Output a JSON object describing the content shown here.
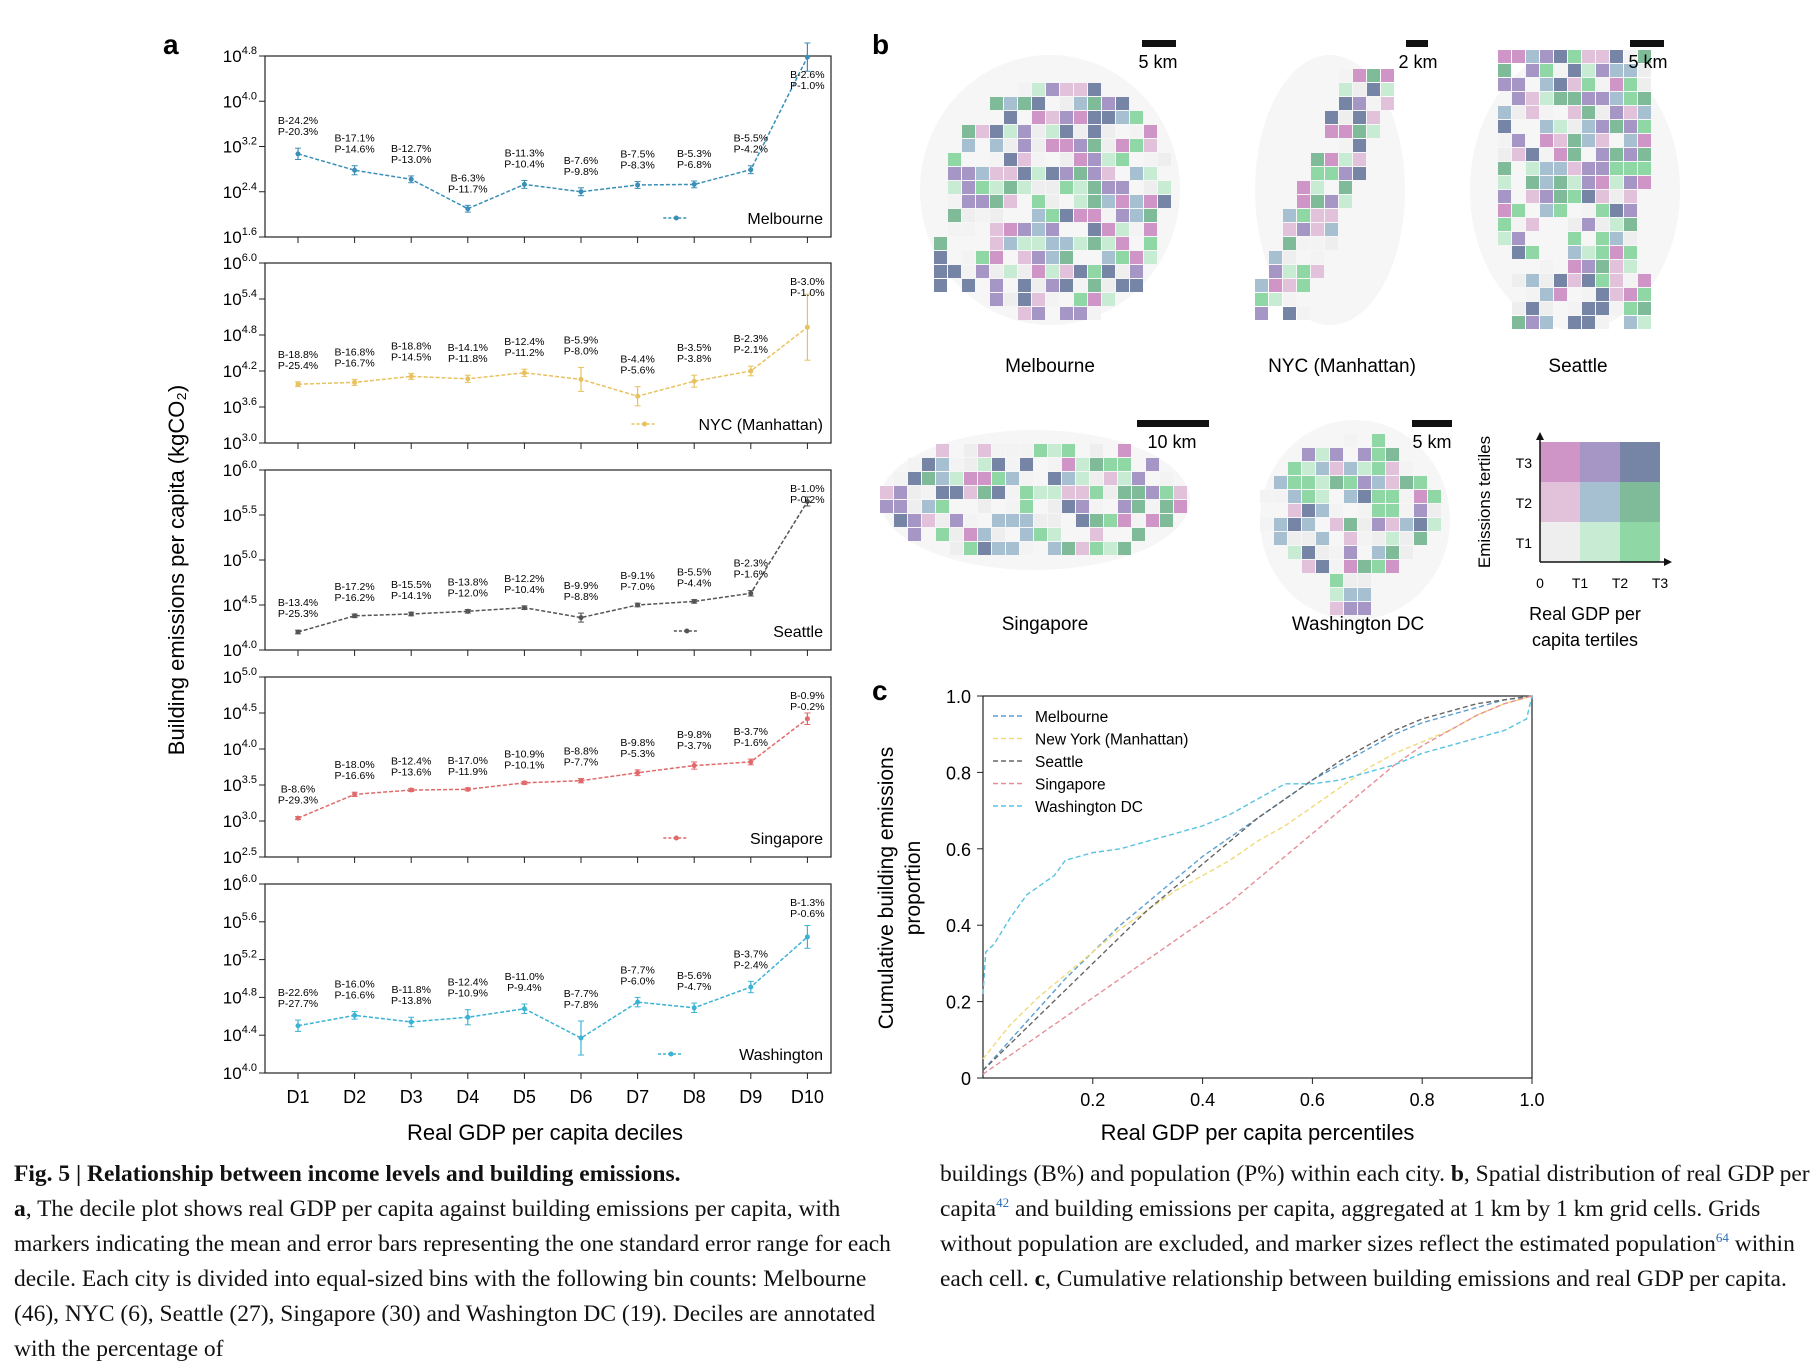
{
  "figure": {
    "panel_labels": {
      "a": "a",
      "b": "b",
      "c": "c"
    }
  },
  "chart_data": [
    {
      "type": "line",
      "panel": "a",
      "ylabel": "Building emissions per capita (kgCO₂)",
      "xlabel": "Real GDP per capita deciles",
      "categories": [
        "D1",
        "D2",
        "D3",
        "D4",
        "D5",
        "D6",
        "D7",
        "D8",
        "D9",
        "D10"
      ],
      "log_scale": true,
      "subplots": [
        {
          "name": "Melbourne",
          "color": "#3a8fb7",
          "yticks": [
            "10^1.6",
            "10^2.4",
            "10^3.2",
            "10^4.0",
            "10^4.8"
          ],
          "yexp": [
            1.6,
            2.4,
            3.2,
            4.0,
            4.8
          ],
          "values": [
            3.07,
            2.78,
            2.62,
            2.1,
            2.53,
            2.4,
            2.52,
            2.53,
            2.79,
            4.78
          ],
          "err": [
            0.1,
            0.08,
            0.06,
            0.06,
            0.07,
            0.07,
            0.06,
            0.06,
            0.07,
            0.25
          ],
          "labels": [
            [
              "B-24.2%",
              "P-20.3%"
            ],
            [
              "B-17.1%",
              "P-14.6%"
            ],
            [
              "B-12.7%",
              "P-13.0%"
            ],
            [
              "B-6.3%",
              "P-11.7%"
            ],
            [
              "B-11.3%",
              "P-10.4%"
            ],
            [
              "B-7.6%",
              "P-9.8%"
            ],
            [
              "B-7.5%",
              "P-8.3%"
            ],
            [
              "B-5.3%",
              "P-6.8%"
            ],
            [
              "B-5.5%",
              "P-4.2%"
            ],
            [
              "B-2.6%",
              "P-1.0%"
            ]
          ]
        },
        {
          "name": "NYC (Manhattan)",
          "color": "#e8c25e",
          "yticks": [
            "10^3.0",
            "10^3.6",
            "10^4.2",
            "10^4.8",
            "10^5.4",
            "10^6.0"
          ],
          "yexp": [
            3.0,
            3.6,
            4.2,
            4.8,
            5.4,
            6.0
          ],
          "values": [
            3.98,
            4.01,
            4.11,
            4.07,
            4.17,
            4.06,
            3.78,
            4.03,
            4.2,
            4.93
          ],
          "err": [
            0.04,
            0.05,
            0.05,
            0.06,
            0.06,
            0.2,
            0.16,
            0.1,
            0.08,
            0.55
          ],
          "labels": [
            [
              "B-18.8%",
              "P-25.4%"
            ],
            [
              "B-16.8%",
              "P-16.7%"
            ],
            [
              "B-18.8%",
              "P-14.5%"
            ],
            [
              "B-14.1%",
              "P-11.8%"
            ],
            [
              "B-12.4%",
              "P-11.2%"
            ],
            [
              "B-5.9%",
              "P-8.0%"
            ],
            [
              "B-4.4%",
              "P-5.6%"
            ],
            [
              "B-3.5%",
              "P-3.8%"
            ],
            [
              "B-2.3%",
              "P-2.1%"
            ],
            [
              "B-3.0%",
              "P-1.0%"
            ]
          ]
        },
        {
          "name": "Seattle",
          "color": "#555555",
          "yticks": [
            "10^4.0",
            "10^4.5",
            "10^5.0",
            "10^5.5",
            "10^6.0"
          ],
          "yexp": [
            4.0,
            4.5,
            5.0,
            5.5,
            6.0
          ],
          "values": [
            4.2,
            4.38,
            4.4,
            4.43,
            4.47,
            4.36,
            4.5,
            4.54,
            4.63,
            5.65
          ],
          "err": [
            0.02,
            0.02,
            0.02,
            0.02,
            0.02,
            0.05,
            0.02,
            0.02,
            0.03,
            0.05
          ],
          "labels": [
            [
              "B-13.4%",
              "P-25.3%"
            ],
            [
              "B-17.2%",
              "P-16.2%"
            ],
            [
              "B-15.5%",
              "P-14.1%"
            ],
            [
              "B-13.8%",
              "P-12.0%"
            ],
            [
              "B-12.2%",
              "P-10.4%"
            ],
            [
              "B-9.9%",
              "P-8.8%"
            ],
            [
              "B-9.1%",
              "P-7.0%"
            ],
            [
              "B-5.5%",
              "P-4.4%"
            ],
            [
              "B-2.3%",
              "P-1.6%"
            ],
            [
              "B-1.0%",
              "P-0.2%"
            ]
          ]
        },
        {
          "name": "Singapore",
          "color": "#e0696b",
          "yticks": [
            "10^2.5",
            "10^3.0",
            "10^3.5",
            "10^4.0",
            "10^4.5",
            "10^5.0"
          ],
          "yexp": [
            2.5,
            3.0,
            3.5,
            4.0,
            4.5,
            5.0
          ],
          "values": [
            3.04,
            3.37,
            3.43,
            3.44,
            3.53,
            3.56,
            3.67,
            3.77,
            3.82,
            4.42
          ],
          "err": [
            0.02,
            0.03,
            0.02,
            0.02,
            0.02,
            0.03,
            0.04,
            0.05,
            0.04,
            0.08
          ],
          "labels": [
            [
              "B-8.6%",
              "P-29.3%"
            ],
            [
              "B-18.0%",
              "P-16.6%"
            ],
            [
              "B-12.4%",
              "P-13.6%"
            ],
            [
              "B-17.0%",
              "P-11.9%"
            ],
            [
              "B-10.9%",
              "P-10.1%"
            ],
            [
              "B-8.8%",
              "P-7.7%"
            ],
            [
              "B-9.8%",
              "P-5.3%"
            ],
            [
              "B-9.8%",
              "P-3.7%"
            ],
            [
              "B-3.7%",
              "P-1.6%"
            ],
            [
              "B-0.9%",
              "P-0.2%"
            ]
          ]
        },
        {
          "name": "Washington",
          "color": "#3bb3d4",
          "yticks": [
            "10^4.0",
            "10^4.4",
            "10^4.8",
            "10^5.2",
            "10^5.6",
            "10^6.0"
          ],
          "yexp": [
            4.0,
            4.4,
            4.8,
            5.2,
            5.6,
            6.0
          ],
          "values": [
            4.5,
            4.61,
            4.54,
            4.59,
            4.68,
            4.37,
            4.75,
            4.69,
            4.91,
            5.44
          ],
          "err": [
            0.06,
            0.04,
            0.05,
            0.08,
            0.05,
            0.18,
            0.05,
            0.05,
            0.06,
            0.12
          ],
          "labels": [
            [
              "B-22.6%",
              "P-27.7%"
            ],
            [
              "B-16.0%",
              "P-16.6%"
            ],
            [
              "B-11.8%",
              "P-13.8%"
            ],
            [
              "B-12.4%",
              "P-10.9%"
            ],
            [
              "B-11.0%",
              "P-9.4%"
            ],
            [
              "B-7.7%",
              "P-7.8%"
            ],
            [
              "B-7.7%",
              "P-6.0%"
            ],
            [
              "B-5.6%",
              "P-4.7%"
            ],
            [
              "B-3.7%",
              "P-2.4%"
            ],
            [
              "B-1.3%",
              "P-0.6%"
            ]
          ]
        }
      ]
    },
    {
      "type": "line",
      "panel": "c",
      "xlabel": "Real GDP per capita percentiles",
      "ylabel": "Cumulative building emissions proportion",
      "xlim": [
        0,
        1.0
      ],
      "ylim": [
        0,
        1.0
      ],
      "xticks": [
        "0.2",
        "0.4",
        "0.6",
        "0.8",
        "1.0"
      ],
      "xtick_vals": [
        0.2,
        0.4,
        0.6,
        0.8,
        1.0
      ],
      "yticks": [
        "0",
        "0.2",
        "0.4",
        "0.6",
        "0.8",
        "1.0"
      ],
      "ytick_vals": [
        0,
        0.2,
        0.4,
        0.6,
        0.8,
        1.0
      ],
      "legend_position": "top-left",
      "series": [
        {
          "name": "Melbourne",
          "color": "#5a9fd0",
          "x": [
            0,
            0.05,
            0.1,
            0.15,
            0.2,
            0.25,
            0.3,
            0.35,
            0.4,
            0.45,
            0.5,
            0.55,
            0.6,
            0.65,
            0.7,
            0.75,
            0.8,
            0.85,
            0.9,
            0.95,
            1.0
          ],
          "y": [
            0.02,
            0.1,
            0.18,
            0.26,
            0.33,
            0.4,
            0.46,
            0.52,
            0.58,
            0.63,
            0.68,
            0.73,
            0.78,
            0.82,
            0.86,
            0.9,
            0.93,
            0.95,
            0.97,
            0.99,
            1.0
          ]
        },
        {
          "name": "New York (Manhattan)",
          "color": "#f0da7a",
          "x": [
            0,
            0.05,
            0.1,
            0.15,
            0.2,
            0.25,
            0.3,
            0.35,
            0.4,
            0.45,
            0.5,
            0.55,
            0.6,
            0.65,
            0.7,
            0.75,
            0.8,
            0.85,
            0.9,
            0.95,
            1.0
          ],
          "y": [
            0.05,
            0.14,
            0.21,
            0.27,
            0.33,
            0.39,
            0.44,
            0.49,
            0.53,
            0.57,
            0.62,
            0.66,
            0.71,
            0.76,
            0.81,
            0.85,
            0.88,
            0.91,
            0.95,
            0.98,
            1.0
          ]
        },
        {
          "name": "Seattle",
          "color": "#666666",
          "x": [
            0,
            0.05,
            0.1,
            0.15,
            0.2,
            0.25,
            0.3,
            0.35,
            0.4,
            0.45,
            0.5,
            0.55,
            0.6,
            0.65,
            0.7,
            0.75,
            0.8,
            0.85,
            0.9,
            0.95,
            1.0
          ],
          "y": [
            0.02,
            0.09,
            0.16,
            0.23,
            0.3,
            0.37,
            0.44,
            0.5,
            0.56,
            0.62,
            0.68,
            0.73,
            0.78,
            0.83,
            0.87,
            0.91,
            0.94,
            0.96,
            0.98,
            0.99,
            1.0
          ]
        },
        {
          "name": "Singapore",
          "color": "#e58f99",
          "x": [
            0,
            0.05,
            0.1,
            0.15,
            0.2,
            0.25,
            0.3,
            0.35,
            0.4,
            0.45,
            0.5,
            0.55,
            0.6,
            0.65,
            0.7,
            0.75,
            0.8,
            0.85,
            0.9,
            0.95,
            1.0
          ],
          "y": [
            0.01,
            0.06,
            0.11,
            0.16,
            0.21,
            0.26,
            0.31,
            0.36,
            0.41,
            0.46,
            0.52,
            0.58,
            0.64,
            0.7,
            0.76,
            0.82,
            0.87,
            0.91,
            0.95,
            0.98,
            1.0
          ]
        },
        {
          "name": "Washington DC",
          "color": "#57c3df",
          "x": [
            0,
            0.005,
            0.02,
            0.05,
            0.08,
            0.1,
            0.13,
            0.15,
            0.2,
            0.25,
            0.3,
            0.35,
            0.4,
            0.45,
            0.5,
            0.55,
            0.6,
            0.65,
            0.7,
            0.75,
            0.8,
            0.85,
            0.9,
            0.95,
            0.99,
            1.0
          ],
          "y": [
            0.22,
            0.33,
            0.35,
            0.42,
            0.48,
            0.5,
            0.53,
            0.57,
            0.59,
            0.6,
            0.62,
            0.64,
            0.66,
            0.69,
            0.73,
            0.77,
            0.77,
            0.78,
            0.8,
            0.82,
            0.85,
            0.87,
            0.89,
            0.91,
            0.94,
            1.0
          ]
        }
      ]
    }
  ],
  "panel_b": {
    "maps": [
      {
        "city": "Melbourne",
        "scale": "5 km"
      },
      {
        "city": "NYC (Manhattan)",
        "scale": "2 km"
      },
      {
        "city": "Seattle",
        "scale": "5 km"
      },
      {
        "city": "Singapore",
        "scale": "10 km"
      },
      {
        "city": "Washington DC",
        "scale": "5 km"
      }
    ],
    "bivariate_legend": {
      "y_title": "Emissions tertiles",
      "x_title_line1": "Real GDP per",
      "x_title_line2": "capita tertiles",
      "x_ticks": [
        "0",
        "T1",
        "T2",
        "T3"
      ],
      "y_ticks": [
        "T1",
        "T2",
        "T3"
      ],
      "colors": [
        [
          "#eeeeee",
          "#c8ecd3",
          "#8fd8a6"
        ],
        [
          "#e2c2da",
          "#a6bfd1",
          "#7fbb98"
        ],
        [
          "#cf95c7",
          "#a596c5",
          "#7684a6"
        ]
      ]
    }
  },
  "caption": {
    "title": "Fig. 5 | Relationship between income levels and building emissions.",
    "a_label": "a",
    "a_text": ", The decile plot shows real GDP per capita against building emissions per capita, with markers indicating the mean and error bars representing the one standard error range for each decile. Each city is divided into equal-sized bins with the following bin counts: Melbourne (46), NYC (6), Seattle (27), Singapore (30) and Washington DC (19). Deciles are annotated with the percentage of",
    "right_text_1": "buildings (B%) and population (P%) within each city. ",
    "b_label": "b",
    "right_text_2": ", Spatial distribution of real GDP per capita",
    "ref1": "42",
    "right_text_3": " and building emissions per capita, aggregated at 1 km by 1 km grid cells. Grids without population are excluded, and marker sizes reflect the estimated population",
    "ref2": "64",
    "right_text_4": " within each cell. ",
    "c_label": "c",
    "right_text_5": ", Cumulative relationship between building emissions and real GDP per capita."
  }
}
